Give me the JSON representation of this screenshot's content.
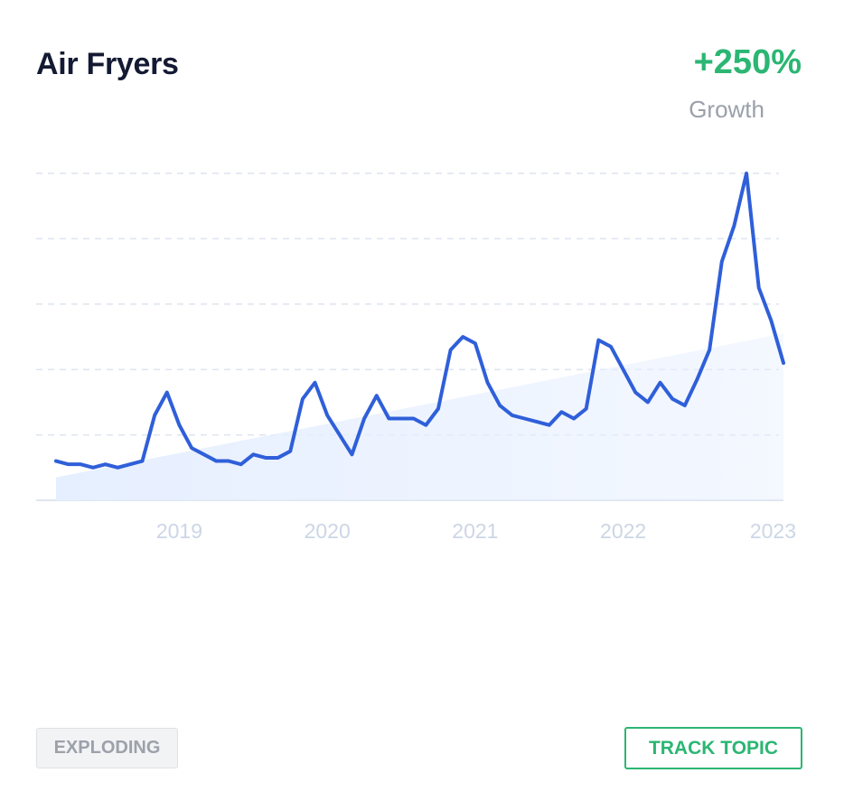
{
  "header": {
    "title": "Air Fryers",
    "growth_value": "+250%",
    "growth_label": "Growth"
  },
  "footer": {
    "status_badge": "EXPLODING",
    "track_button": "TRACK TOPIC"
  },
  "colors": {
    "line": "#2f5fd9",
    "accent_green": "#2bb673",
    "trend_fill": "#e6efff",
    "grid": "#dde4ef",
    "tick_text": "#ccd6e6"
  },
  "chart_data": {
    "type": "line",
    "x_start": "2018-03",
    "x_step": "month",
    "xlim": [
      "2018-03",
      "2023-02"
    ],
    "ylim": [
      0,
      100
    ],
    "grid": true,
    "gridline_values": [
      20,
      40,
      60,
      80,
      100
    ],
    "tick_labels": [
      "2019",
      "2020",
      "2021",
      "2022",
      "2023"
    ],
    "tick_positions": [
      "2019-01",
      "2020-01",
      "2021-01",
      "2022-01",
      "2023-02"
    ],
    "values": [
      12,
      11,
      11,
      10,
      11,
      10,
      11,
      12,
      26,
      33,
      23,
      16,
      14,
      12,
      12,
      11,
      14,
      13,
      13,
      15,
      31,
      36,
      26,
      20,
      14,
      25,
      32,
      25,
      25,
      25,
      23,
      28,
      46,
      50,
      48,
      36,
      29,
      26,
      25,
      24,
      23,
      27,
      25,
      28,
      49,
      47,
      40,
      33,
      30,
      36,
      31,
      29,
      37,
      46,
      73,
      84,
      100,
      65,
      55,
      42
    ],
    "trend": {
      "start": 7,
      "end": 51
    }
  }
}
